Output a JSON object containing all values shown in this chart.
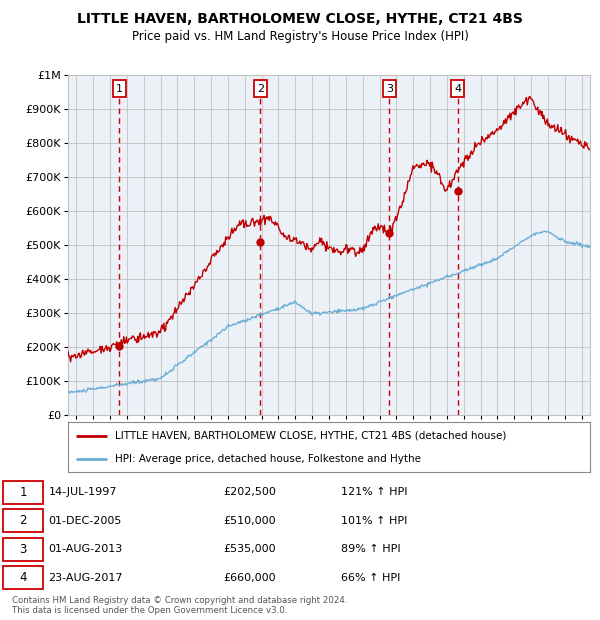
{
  "title_line1": "LITTLE HAVEN, BARTHOLOMEW CLOSE, HYTHE, CT21 4BS",
  "title_line2": "Price paid vs. HM Land Registry's House Price Index (HPI)",
  "legend_line1": "LITTLE HAVEN, BARTHOLOMEW CLOSE, HYTHE, CT21 4BS (detached house)",
  "legend_line2": "HPI: Average price, detached house, Folkestone and Hythe",
  "footer_line1": "Contains HM Land Registry data © Crown copyright and database right 2024.",
  "footer_line2": "This data is licensed under the Open Government Licence v3.0.",
  "sale_year_nums": [
    1997.542,
    2005.917,
    2013.583,
    2017.646
  ],
  "sale_prices": [
    202500,
    510000,
    535000,
    660000
  ],
  "sale_labels": [
    "1",
    "2",
    "3",
    "4"
  ],
  "sale_annotations": [
    {
      "label": "1",
      "date": "14-JUL-1997",
      "price": "£202,500",
      "hpi": "121% ↑ HPI"
    },
    {
      "label": "2",
      "date": "01-DEC-2005",
      "price": "£510,000",
      "hpi": "101% ↑ HPI"
    },
    {
      "label": "3",
      "date": "01-AUG-2013",
      "price": "£535,000",
      "hpi": "89% ↑ HPI"
    },
    {
      "label": "4",
      "date": "23-AUG-2017",
      "price": "£660,000",
      "hpi": "66% ↑ HPI"
    }
  ],
  "hpi_color": "#6baed6",
  "price_color": "#c00000",
  "background_color": "#dce6f1",
  "plot_bg_color": "#ffffff",
  "grid_color": "#c0c0c0",
  "sale_vline_color": "#cc0000",
  "ylim": [
    0,
    1000000
  ],
  "yticks": [
    0,
    100000,
    200000,
    300000,
    400000,
    500000,
    600000,
    700000,
    800000,
    900000,
    1000000
  ],
  "ytick_labels": [
    "£0",
    "£100K",
    "£200K",
    "£300K",
    "£400K",
    "£500K",
    "£600K",
    "£700K",
    "£800K",
    "£900K",
    "£1M"
  ],
  "xlim": [
    1994.5,
    2025.5
  ],
  "xtick_start": 1995,
  "xtick_end": 2025
}
